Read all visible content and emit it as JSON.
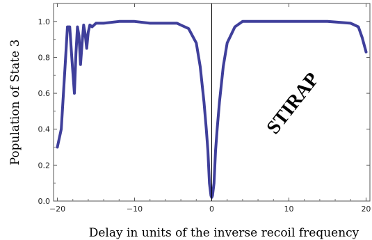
{
  "chart_data": {
    "type": "line",
    "title": "",
    "xlabel": "Delay in units of the inverse recoil frequency",
    "ylabel": "Population of State 3",
    "xlim": [
      -20.5,
      20.5
    ],
    "ylim": [
      0,
      1.1
    ],
    "xticks": [
      -20,
      -10,
      0,
      10,
      20
    ],
    "xtick_labels": [
      "−20",
      "−10",
      "0",
      "10",
      "20"
    ],
    "yticks": [
      0,
      0.2,
      0.4,
      0.6,
      0.8,
      1.0
    ],
    "ytick_labels": [
      "0.0",
      "0.2",
      "0.4",
      "0.6",
      "0.8",
      "1.0"
    ],
    "annotation": "STIRAP",
    "line_color": "#3f3f9b",
    "series": [
      {
        "x": [
          -20.0,
          -19.5,
          -19.0,
          -18.7,
          -18.4,
          -18.1,
          -17.8,
          -17.6,
          -17.4,
          -17.2,
          -17.0,
          -16.8,
          -16.6,
          -16.4,
          -16.2,
          -16.0,
          -15.8,
          -15.5,
          -15.0,
          -14.0,
          -12.0,
          -10.0,
          -8.0,
          -6.0,
          -4.5,
          -4.0,
          -3.0,
          -2.0,
          -1.5,
          -1.0,
          -0.7,
          -0.5,
          -0.3,
          -0.1,
          0.0,
          0.1,
          0.3,
          0.5,
          0.7,
          1.0,
          1.5,
          2.0,
          3.0,
          4.0,
          6.0,
          10.0,
          15.0,
          18.0,
          19.0,
          19.5,
          20.0
        ],
        "y": [
          0.3,
          0.4,
          0.75,
          0.97,
          0.97,
          0.78,
          0.6,
          0.82,
          0.97,
          0.92,
          0.76,
          0.88,
          0.98,
          0.93,
          0.85,
          0.94,
          0.98,
          0.97,
          0.99,
          0.99,
          1.0,
          1.0,
          0.99,
          0.99,
          0.99,
          0.98,
          0.96,
          0.88,
          0.75,
          0.55,
          0.4,
          0.28,
          0.1,
          0.03,
          0.02,
          0.03,
          0.1,
          0.28,
          0.4,
          0.55,
          0.75,
          0.88,
          0.97,
          1.0,
          1.0,
          1.0,
          1.0,
          0.99,
          0.97,
          0.91,
          0.83
        ]
      }
    ]
  }
}
